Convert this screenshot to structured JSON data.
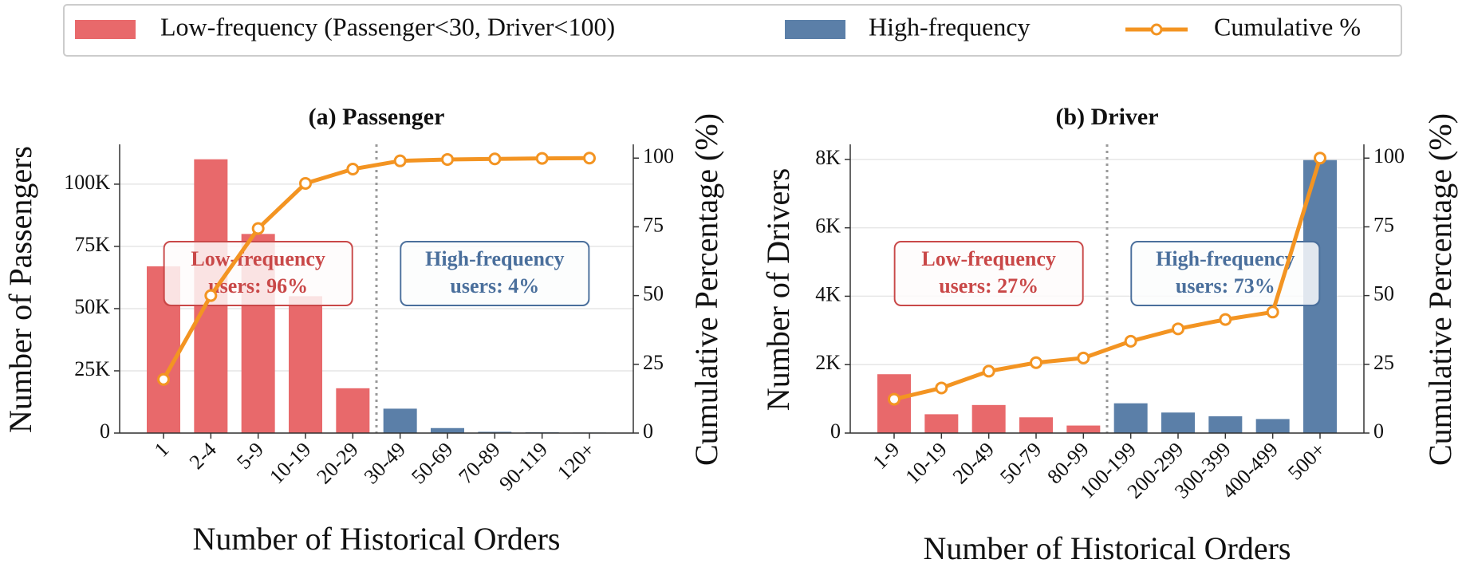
{
  "chart_data": [
    {
      "type": "bar",
      "title": "(a) Passenger",
      "xlabel": "Number of Historical Orders",
      "ylabel": "Number of Passengers",
      "y2label": "Cumulative Percentage (%)",
      "categories": [
        "1",
        "2-4",
        "5-9",
        "10-19",
        "20-29",
        "30-49",
        "50-69",
        "70-89",
        "90-119",
        "120+"
      ],
      "series": [
        {
          "name": "Low-frequency (Passenger<30, Driver<100)",
          "color": "#e8696b",
          "values": [
            67000,
            110000,
            80000,
            55000,
            18000,
            null,
            null,
            null,
            null,
            null
          ]
        },
        {
          "name": "High-frequency",
          "color": "#5b7fa8",
          "values": [
            null,
            null,
            null,
            null,
            null,
            9800,
            2000,
            500,
            300,
            200
          ]
        },
        {
          "name": "Cumulative %",
          "color": "#f39422",
          "axis": "y2",
          "values": [
            19.5,
            50,
            74.4,
            90.8,
            96,
            99,
            99.5,
            99.7,
            99.9,
            100
          ]
        }
      ],
      "ylim": [
        0,
        116000
      ],
      "yticks": [
        0,
        {
          "value": 25000,
          "label": "25K"
        },
        {
          "value": 50000,
          "label": "50K"
        },
        {
          "value": 75000,
          "label": "75K"
        },
        {
          "value": 100000,
          "label": "100K"
        }
      ],
      "y2lim": [
        0,
        105
      ],
      "y2ticks": [
        0,
        25,
        50,
        75,
        100
      ],
      "grid": true,
      "annotations": [
        {
          "lines": [
            "Low-frequency",
            "users: 96%"
          ],
          "color": "#c94848"
        },
        {
          "lines": [
            "High-frequency",
            "users: 4%"
          ],
          "color": "#4a6f9c"
        }
      ]
    },
    {
      "type": "bar",
      "title": "(b) Driver",
      "xlabel": "Number of Historical Orders",
      "ylabel": "Number of Drivers",
      "y2label": "Cumulative Percentage (%)",
      "categories": [
        "1-9",
        "10-19",
        "20-49",
        "50-79",
        "80-99",
        "100-199",
        "200-299",
        "300-399",
        "400-499",
        "500+"
      ],
      "series": [
        {
          "color": "#e8696b",
          "values": [
            1720,
            550,
            820,
            460,
            220,
            null,
            null,
            null,
            null,
            null
          ]
        },
        {
          "color": "#5b7fa8",
          "values": [
            null,
            null,
            null,
            null,
            null,
            870,
            600,
            490,
            410,
            7980
          ]
        },
        {
          "color": "#f39422",
          "axis": "y2",
          "values": [
            12.3,
            16.4,
            22.5,
            25.6,
            27.3,
            33.4,
            37.9,
            41.3,
            44,
            100
          ]
        }
      ],
      "ylim": [
        0,
        8440
      ],
      "yticks": [
        0,
        {
          "value": 2000,
          "label": "2K"
        },
        {
          "value": 4000,
          "label": "4K"
        },
        {
          "value": 6000,
          "label": "6K"
        },
        {
          "value": 8000,
          "label": "8K"
        }
      ],
      "y2lim": [
        0,
        105
      ],
      "y2ticks": [
        0,
        25,
        50,
        75,
        100
      ],
      "grid": true,
      "annotations": [
        {
          "lines": [
            "Low-frequency",
            "users: 27%"
          ],
          "color": "#c94848"
        },
        {
          "lines": [
            "High-frequency",
            "users: 73%"
          ],
          "color": "#4a6f9c"
        }
      ]
    }
  ]
}
